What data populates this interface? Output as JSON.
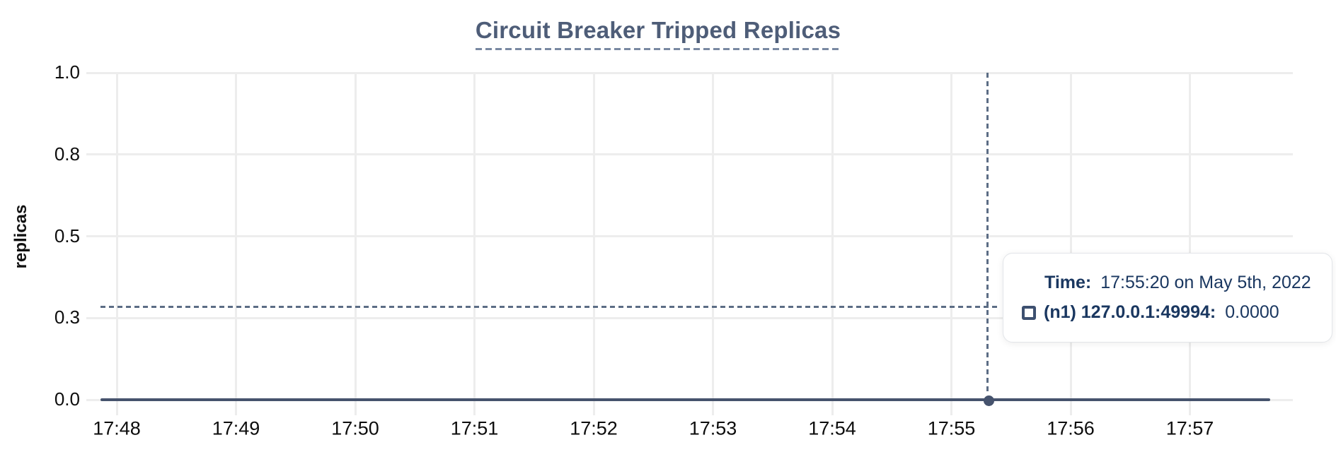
{
  "title": "Circuit Breaker Tripped Replicas",
  "chart_data": {
    "type": "line",
    "title": "Circuit Breaker Tripped Replicas",
    "xlabel": "",
    "ylabel": "replicas",
    "x_tick_labels": [
      "17:48",
      "17:49",
      "17:50",
      "17:51",
      "17:52",
      "17:53",
      "17:54",
      "17:55",
      "17:56",
      "17:57"
    ],
    "y_tick_labels": [
      "1.0",
      "0.8",
      "0.5",
      "0.3",
      "0.0"
    ],
    "y_tick_values": [
      1.0,
      0.75,
      0.5,
      0.25,
      0.0
    ],
    "ylim": [
      0,
      1
    ],
    "grid": true,
    "legend_position": "none",
    "series": [
      {
        "name": "(n1) 127.0.0.1:49994",
        "color": "#46536d",
        "y_constant": 0,
        "values_description": "constant 0.0000 replicas across entire visible time range 17:48-17:57"
      }
    ],
    "cursor": {
      "time": "17:55:20",
      "date": "May 5th, 2022",
      "hovered_value": 0.0
    }
  },
  "tooltip": {
    "time_label": "Time:",
    "time_value": "17:55:20 on May 5th, 2022",
    "series_label": "(n1) 127.0.0.1:49994:",
    "series_value": "0.0000"
  },
  "colors": {
    "title": "#4e5d78",
    "title_underline": "#7988a2",
    "axis_text": "#0d0d0d",
    "grid": "#ededed",
    "line": "#46536d",
    "crosshair": "#5c6d85",
    "tooltip_text": "#1a3760",
    "tooltip_border": "#e2e5e9"
  }
}
